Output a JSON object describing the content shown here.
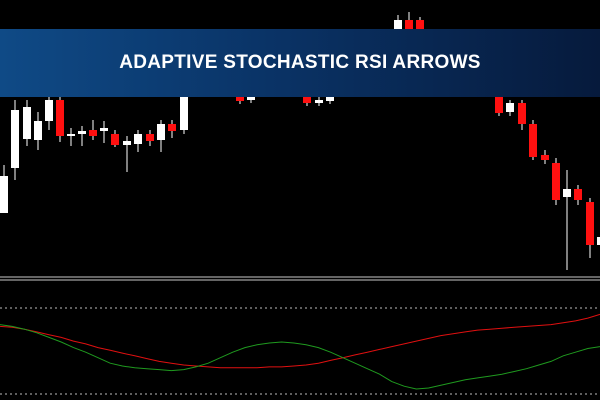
{
  "banner": {
    "title": "ADAPTIVE STOCHASTIC RSI ARROWS"
  },
  "colors": {
    "background": "#000000",
    "bull_candle": "#ffffff",
    "bear_candle": "#ff1010",
    "wick": "#ffffff",
    "separator": "#c8c8c8",
    "level_lines": "#bdbdbd",
    "fast_line": "#1f9a1f",
    "slow_line": "#e01010",
    "banner_left": "#0f4a86",
    "banner_right": "#061a3c"
  },
  "price_candles": [
    {
      "o": 213,
      "c": 176,
      "h": 165,
      "l": 200,
      "dir": "bull"
    },
    {
      "o": 168,
      "c": 110,
      "h": 100,
      "l": 180,
      "dir": "bull"
    },
    {
      "o": 139,
      "c": 107,
      "h": 100,
      "l": 146,
      "dir": "bull"
    },
    {
      "o": 140,
      "c": 121,
      "h": 112,
      "l": 150,
      "dir": "bull"
    },
    {
      "o": 121,
      "c": 100,
      "h": 96,
      "l": 130,
      "dir": "bull"
    },
    {
      "o": 100,
      "c": 136,
      "h": 96,
      "l": 142,
      "dir": "bear"
    },
    {
      "o": 134,
      "c": 136,
      "h": 128,
      "l": 146,
      "dir": "bull"
    },
    {
      "o": 134,
      "c": 131,
      "h": 126,
      "l": 146,
      "dir": "bull"
    },
    {
      "o": 130,
      "c": 136,
      "h": 120,
      "l": 140,
      "dir": "bear"
    },
    {
      "o": 131,
      "c": 128,
      "h": 121,
      "l": 143,
      "dir": "bull"
    },
    {
      "o": 134,
      "c": 145,
      "h": 130,
      "l": 147,
      "dir": "bear"
    },
    {
      "o": 145,
      "c": 141,
      "h": 136,
      "l": 172,
      "dir": "bull"
    },
    {
      "o": 144,
      "c": 134,
      "h": 130,
      "l": 152,
      "dir": "bull"
    },
    {
      "o": 134,
      "c": 141,
      "h": 130,
      "l": 146,
      "dir": "bear"
    },
    {
      "o": 140,
      "c": 124,
      "h": 120,
      "l": 152,
      "dir": "bull"
    },
    {
      "o": 124,
      "c": 131,
      "h": 120,
      "l": 138,
      "dir": "bear"
    },
    {
      "o": 130,
      "c": 96,
      "h": 92,
      "l": 134,
      "dir": "bull"
    },
    {
      "o": 97,
      "c": 101,
      "h": 92,
      "l": 104,
      "dir": "bear"
    },
    {
      "o": 100,
      "c": 97,
      "h": 92,
      "l": 103,
      "dir": "bull"
    },
    {
      "o": 97,
      "c": 103,
      "h": 92,
      "l": 106,
      "dir": "bear"
    },
    {
      "o": 100,
      "c": 103,
      "h": 94,
      "l": 106,
      "dir": "bull"
    },
    {
      "o": 101,
      "c": 97,
      "h": 92,
      "l": 104,
      "dir": "bull"
    },
    {
      "o": 20,
      "c": 30,
      "h": 15,
      "l": 30,
      "dir": "bull"
    },
    {
      "o": 20,
      "c": 30,
      "h": 12,
      "l": 30,
      "dir": "bear"
    },
    {
      "o": 20,
      "c": 30,
      "h": 17,
      "l": 30,
      "dir": "bear"
    },
    {
      "o": 97,
      "c": 113,
      "h": 92,
      "l": 116,
      "dir": "bear"
    },
    {
      "o": 112,
      "c": 103,
      "h": 100,
      "l": 116,
      "dir": "bull"
    },
    {
      "o": 103,
      "c": 124,
      "h": 100,
      "l": 130,
      "dir": "bear"
    },
    {
      "o": 124,
      "c": 157,
      "h": 120,
      "l": 160,
      "dir": "bear"
    },
    {
      "o": 155,
      "c": 160,
      "h": 150,
      "l": 164,
      "dir": "bear"
    },
    {
      "o": 163,
      "c": 200,
      "h": 158,
      "l": 205,
      "dir": "bear"
    },
    {
      "o": 197,
      "c": 189,
      "h": 170,
      "l": 270,
      "dir": "bull"
    },
    {
      "o": 189,
      "c": 200,
      "h": 185,
      "l": 205,
      "dir": "bear"
    },
    {
      "o": 202,
      "c": 245,
      "h": 198,
      "l": 258,
      "dir": "bear"
    },
    {
      "o": 245,
      "c": 237,
      "h": 228,
      "l": 250,
      "dir": "bull"
    }
  ],
  "oscillator": {
    "fast": [
      82,
      80,
      77,
      73,
      68,
      63,
      57,
      52,
      46,
      40,
      37,
      35,
      34,
      33,
      32,
      33,
      36,
      40,
      46,
      52,
      57,
      60,
      62,
      63,
      62,
      60,
      57,
      52,
      46,
      40,
      34,
      28,
      20,
      15,
      12,
      13,
      16,
      19,
      22,
      24,
      26,
      28,
      31,
      34,
      38,
      42,
      48,
      52,
      56,
      58
    ],
    "slow": [
      80,
      79,
      77,
      74,
      71,
      68,
      64,
      61,
      57,
      54,
      51,
      48,
      45,
      42,
      40,
      38,
      37,
      36,
      35,
      35,
      35,
      35,
      36,
      36,
      37,
      38,
      40,
      43,
      46,
      49,
      52,
      55,
      58,
      61,
      64,
      67,
      70,
      72,
      74,
      76,
      77,
      78,
      79,
      80,
      81,
      82,
      84,
      86,
      89,
      93
    ]
  }
}
